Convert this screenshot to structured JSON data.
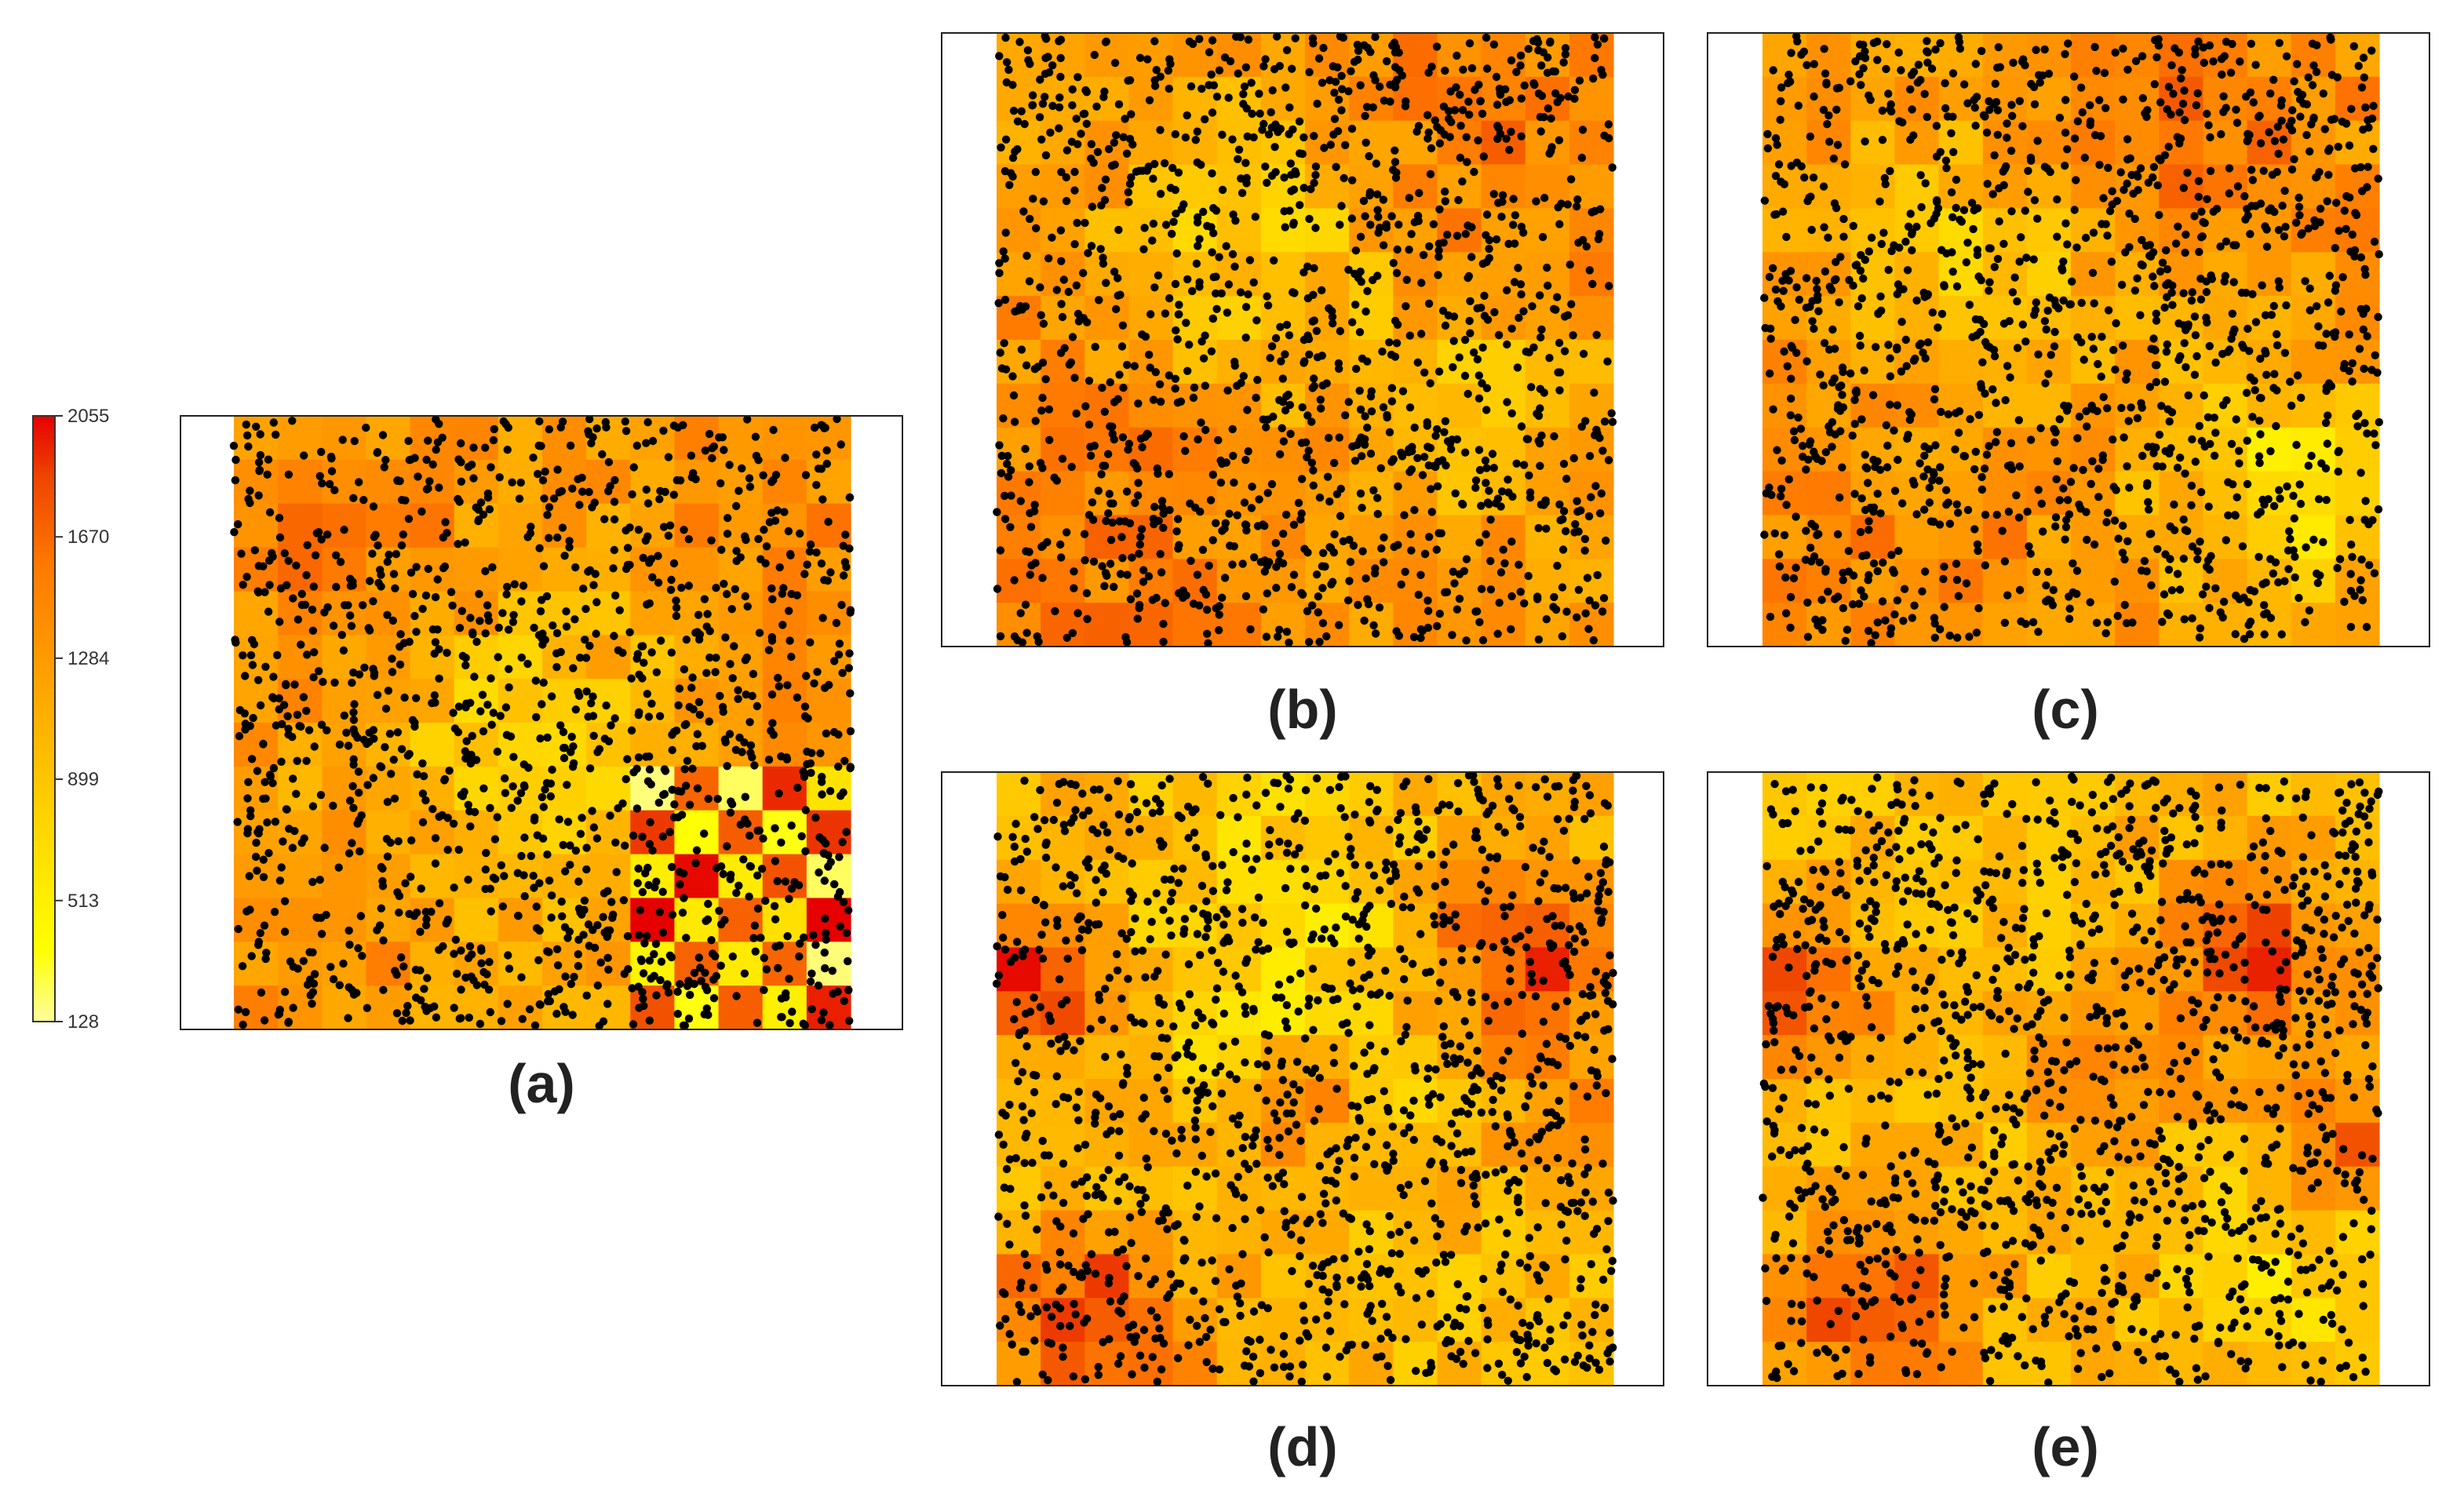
{
  "chart_data": {
    "type": "heatmap",
    "colorbar": {
      "ticks": [
        2055,
        1670,
        1284,
        899,
        513,
        128
      ],
      "range": [
        128,
        2055
      ],
      "colors": [
        "#fffd9c",
        "#ffff00",
        "#ffd000",
        "#ffa500",
        "#ff7a00",
        "#ee4400",
        "#e60000"
      ]
    },
    "point_color": "#000000",
    "panels": [
      {
        "label": "(a)",
        "grid": [
          14,
          14
        ],
        "points": 1400,
        "pattern": "gradient-east-contrast"
      },
      {
        "label": "(b)",
        "grid": [
          14,
          14
        ],
        "points": 1400,
        "pattern": "smooth-upper-band"
      },
      {
        "label": "(c)",
        "grid": [
          14,
          14
        ],
        "points": 1400,
        "pattern": "smooth-lower-right"
      },
      {
        "label": "(d)",
        "grid": [
          14,
          14
        ],
        "points": 1400,
        "pattern": "clusters-red"
      },
      {
        "label": "(e)",
        "grid": [
          14,
          14
        ],
        "points": 1400,
        "pattern": "clusters-red-2"
      }
    ]
  }
}
